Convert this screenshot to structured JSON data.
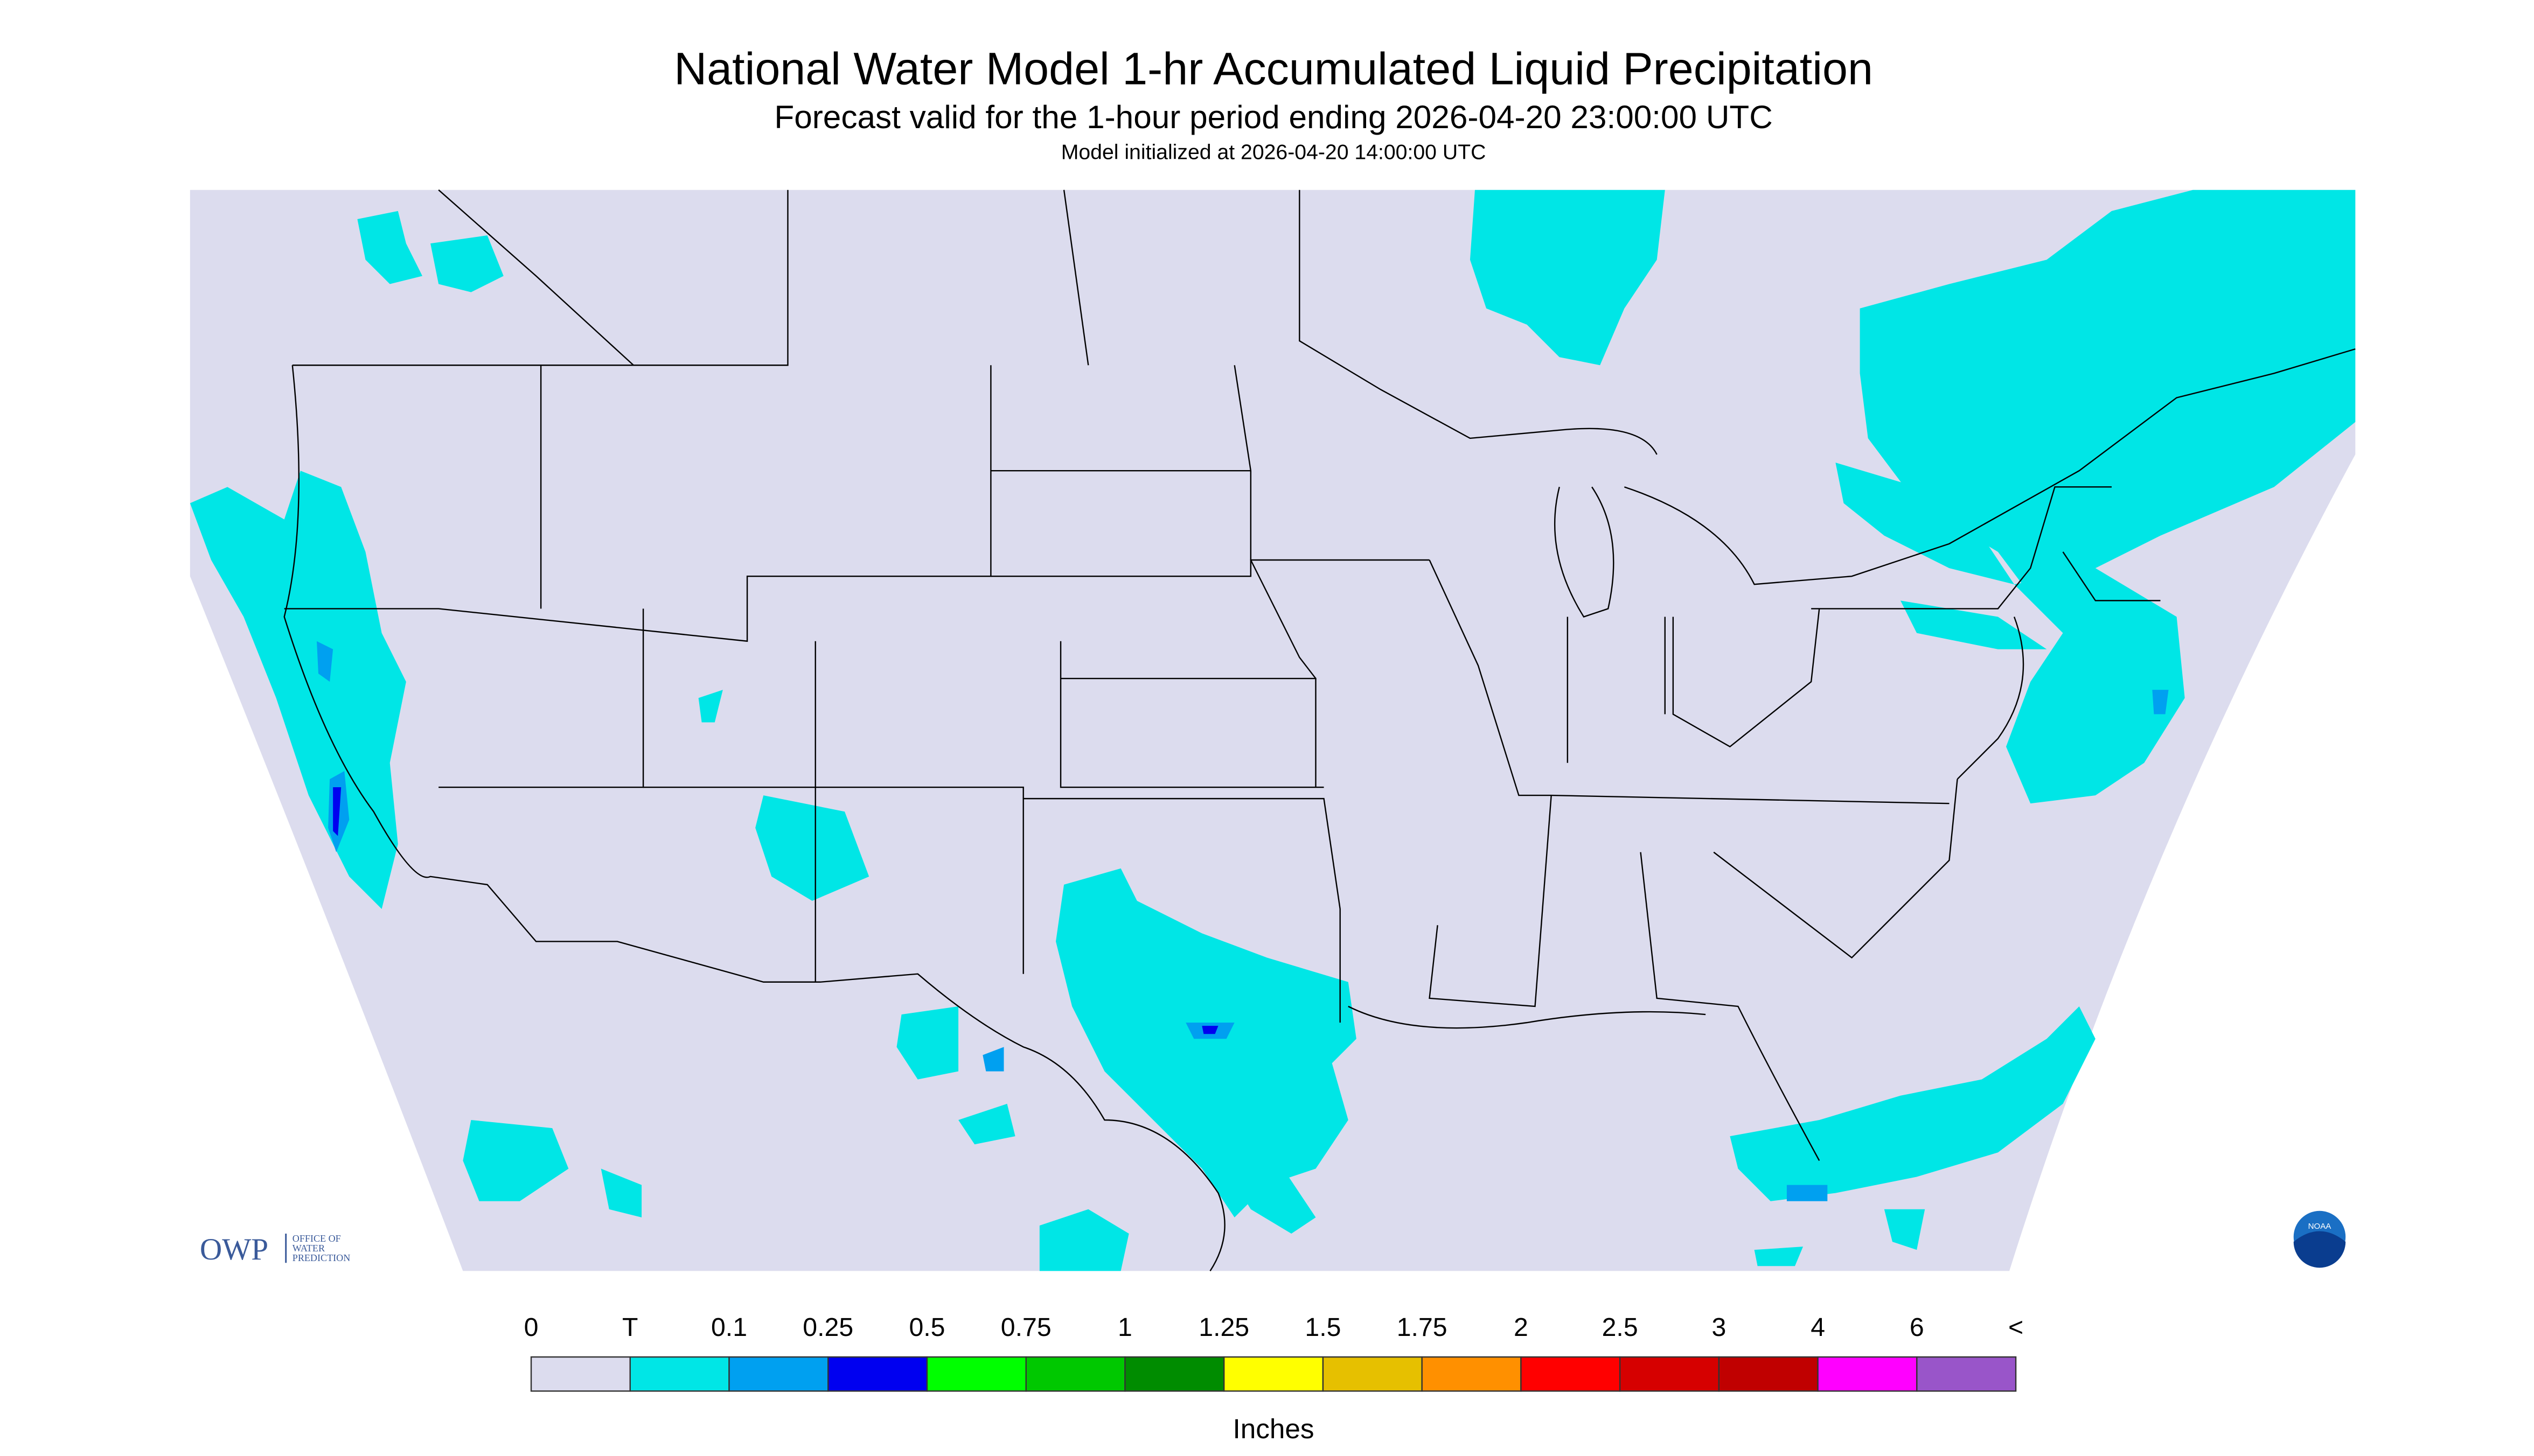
{
  "header": {
    "title": "National Water Model 1-hr Accumulated Liquid Precipitation",
    "subtitle": "Forecast valid for the 1-hour period ending 2026-04-20 23:00:00 UTC",
    "initialized": "Model initialized at 2026-04-20 14:00:00 UTC"
  },
  "logo": {
    "mark": "OWP",
    "line1": "OFFICE OF",
    "line2": "WATER",
    "line3": "PREDICTION",
    "badge": "NOAA"
  },
  "legend": {
    "labels": [
      "0",
      "T",
      "0.1",
      "0.25",
      "0.5",
      "0.75",
      "1",
      "1.25",
      "1.5",
      "1.75",
      "2",
      "2.5",
      "3",
      "4",
      "6",
      "<"
    ],
    "colors": [
      "#dcdcee",
      "#00e6e6",
      "#00a0f0",
      "#0000f0",
      "#00ff00",
      "#00c800",
      "#008c00",
      "#ffff00",
      "#e6c000",
      "#ff9000",
      "#ff0000",
      "#d60000",
      "#c00000",
      "#ff00ff",
      "#9955c9"
    ],
    "unit": "Inches"
  }
}
